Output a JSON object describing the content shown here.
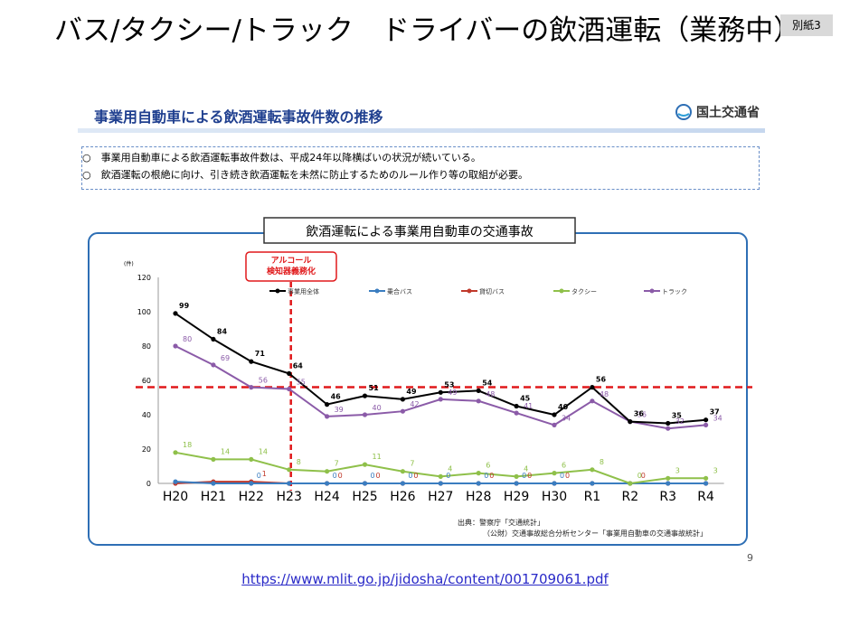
{
  "header": {
    "title": "バス/タクシー/トラック　ドライバーの飲酒運転（業務中）",
    "badge": "別紙3"
  },
  "slide": {
    "title": "事業用自動車による飲酒運転事故件数の推移",
    "ministry": "国土交通省",
    "bullets": [
      "○　事業用自動車による飲酒運転事故件数は、平成24年以降横ばいの状況が続いている。",
      "○　飲酒運転の根絶に向け、引き続き飲酒運転を未然に防止するためのルール作り等の取組が必要。"
    ],
    "page_number": "9"
  },
  "url": "https://www.mlit.go.jp/jidosha/content/001709061.pdf",
  "colors": {
    "total": "#000000",
    "route_bus": "#3a7dc0",
    "charter_bus": "#c0392b",
    "taxi": "#8fc04a",
    "truck": "#8b5ba8",
    "threshold": "#e0191b",
    "frame": "#2e6fb5"
  },
  "chart_data": {
    "type": "line",
    "title": "飲酒運転による事業用自動車の交通事故",
    "unit": "(件)",
    "categories": [
      "H20",
      "H21",
      "H22",
      "H23",
      "H24",
      "H25",
      "H26",
      "H27",
      "H28",
      "H29",
      "H30",
      "R1",
      "R2",
      "R3",
      "R4"
    ],
    "ylim": [
      0,
      120
    ],
    "yticks": [
      "0",
      "20",
      "40",
      "60",
      "80",
      "100",
      "120"
    ],
    "series": [
      {
        "name": "事業用全体",
        "color_key": "total",
        "values": [
          99,
          84,
          71,
          64,
          46,
          51,
          49,
          53,
          54,
          45,
          40,
          56,
          36,
          35,
          37
        ],
        "labels": [
          "99",
          "84",
          "71",
          "64",
          "46",
          "51",
          "49",
          "53",
          "54",
          "45",
          "40",
          "56",
          "36",
          "35",
          "37"
        ]
      },
      {
        "name": "乗合バス",
        "color_key": "route_bus",
        "values": [
          1,
          0,
          0,
          0,
          0,
          0,
          0,
          0,
          0,
          0,
          0,
          0,
          0,
          0,
          0
        ],
        "labels": [
          "",
          "",
          "0",
          "",
          "0",
          "0",
          "0",
          "0",
          "0",
          "0",
          "0",
          "",
          "",
          "",
          ""
        ]
      },
      {
        "name": "貸切バス",
        "color_key": "charter_bus",
        "values": [
          0,
          1,
          1,
          0,
          0,
          0,
          0,
          0,
          0,
          0,
          0,
          0,
          0,
          0,
          0
        ],
        "labels": [
          "",
          "",
          "1",
          "",
          "0",
          "0",
          "0",
          "",
          "0",
          "0",
          "0",
          "",
          "0",
          "",
          ""
        ]
      },
      {
        "name": "タクシー",
        "color_key": "taxi",
        "values": [
          18,
          14,
          14,
          8,
          7,
          11,
          7,
          4,
          6,
          4,
          6,
          8,
          0,
          3,
          3
        ],
        "labels": [
          "18",
          "14",
          "14",
          "8",
          "7",
          "11",
          "7",
          "4",
          "6",
          "4",
          "6",
          "8",
          "0",
          "3",
          "3"
        ]
      },
      {
        "name": "トラック",
        "color_key": "truck",
        "values": [
          80,
          69,
          56,
          55,
          39,
          40,
          42,
          49,
          48,
          41,
          34,
          48,
          36,
          32,
          34
        ],
        "labels": [
          "80",
          "69",
          "56",
          "55",
          "39",
          "40",
          "42",
          "49",
          "48",
          "41",
          "34",
          "48",
          "36",
          "32",
          "34"
        ]
      }
    ],
    "threshold_y": 55,
    "annotation": {
      "text": [
        "アルコール",
        "検知器義務化"
      ],
      "at_category": "H23"
    },
    "source": [
      "出典：警察庁「交通統計」",
      "（公財）交通事故総合分析センター「事業用自動車の交通事故統計」"
    ],
    "legend_position": "top"
  }
}
